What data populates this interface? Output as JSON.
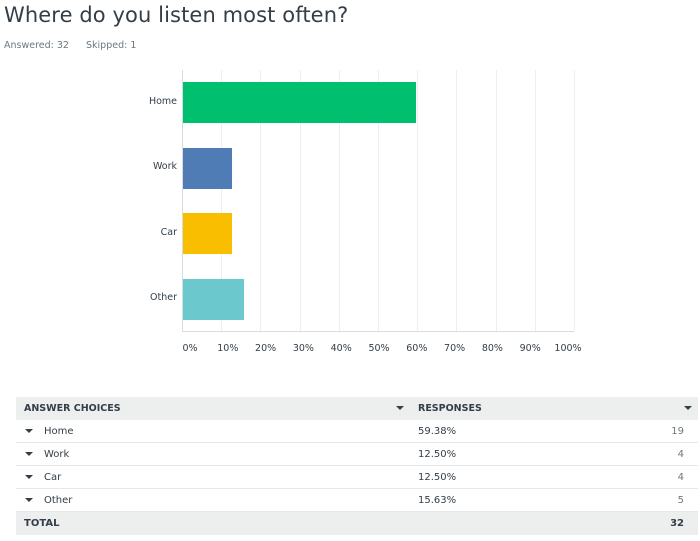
{
  "question": {
    "title": "Where do you listen most often?",
    "answered_label": "Answered: 32",
    "skipped_label": "Skipped: 1"
  },
  "chart_data": {
    "type": "bar",
    "orientation": "horizontal",
    "title": "Where do you listen most often?",
    "categories": [
      "Home",
      "Work",
      "Car",
      "Other"
    ],
    "values": [
      59.38,
      12.5,
      12.5,
      15.63
    ],
    "colors": [
      "#00bf6f",
      "#507cb6",
      "#f9be00",
      "#6bc8cd"
    ],
    "xlabel": "",
    "ylabel": "",
    "xlim": [
      0,
      100
    ],
    "x_ticks": [
      "0%",
      "10%",
      "20%",
      "30%",
      "40%",
      "50%",
      "60%",
      "70%",
      "80%",
      "90%",
      "100%"
    ],
    "grid": true,
    "legend": "none"
  },
  "table": {
    "headers": {
      "choices": "ANSWER CHOICES",
      "responses": "RESPONSES"
    },
    "rows": [
      {
        "choice": "Home",
        "percent": "59.38%",
        "count": "19"
      },
      {
        "choice": "Work",
        "percent": "12.50%",
        "count": "4"
      },
      {
        "choice": "Car",
        "percent": "12.50%",
        "count": "4"
      },
      {
        "choice": "Other",
        "percent": "15.63%",
        "count": "5"
      }
    ],
    "total": {
      "label": "TOTAL",
      "count": "32"
    }
  }
}
